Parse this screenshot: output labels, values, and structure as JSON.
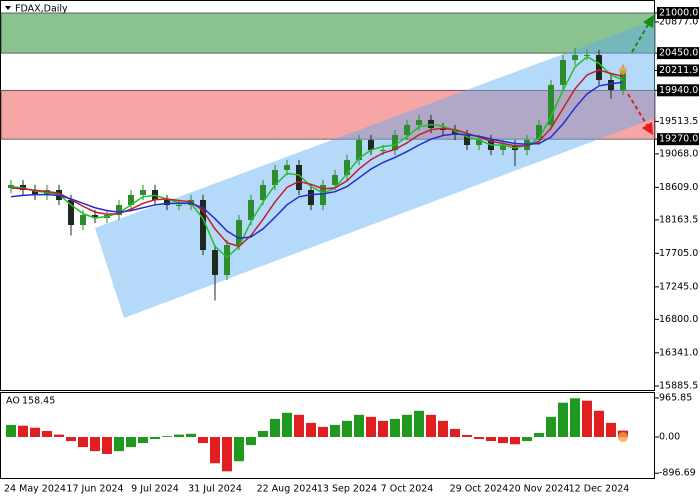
{
  "chart_data": [
    {
      "type": "candlestick",
      "title": "FDAX,Daily",
      "categories": [
        null,
        null,
        "24 May 2024",
        null,
        null,
        null,
        null,
        "17 Jun 2024",
        null,
        null,
        null,
        null,
        "9 Jul 2024",
        null,
        null,
        null,
        null,
        "31 Jul 2024",
        null,
        null,
        null,
        null,
        null,
        "22 Aug 2024",
        null,
        null,
        null,
        null,
        "13 Sep 2024",
        null,
        null,
        null,
        null,
        "7 Oct 2024",
        null,
        null,
        null,
        null,
        null,
        "29 Oct 2024",
        null,
        null,
        null,
        null,
        "20 Nov 2024",
        null,
        null,
        null,
        null,
        "12 Dec 2024",
        null,
        null
      ],
      "open": [
        18600,
        18642,
        18573,
        18505,
        18573,
        18436,
        18093,
        18230,
        18189,
        18230,
        18367,
        18505,
        18573,
        18436,
        18367,
        18367,
        18436,
        17750,
        17408,
        17819,
        18162,
        18436,
        18642,
        18847,
        18916,
        18573,
        18367,
        18642,
        18779,
        18984,
        19259,
        19121,
        19121,
        19327,
        19464,
        19533,
        19423,
        19396,
        19327,
        19190,
        19259,
        19121,
        19190,
        19121,
        19259,
        19464,
        20013,
        20355,
        20424,
        20424,
        20081,
        19944
      ],
      "high": [
        18712,
        18712,
        18643,
        18643,
        18643,
        18506,
        18300,
        18300,
        18300,
        18437,
        18575,
        18643,
        18643,
        18506,
        18437,
        18506,
        18506,
        17820,
        17889,
        18232,
        18506,
        18712,
        18917,
        18986,
        18986,
        18643,
        18712,
        18849,
        19054,
        19329,
        19329,
        19191,
        19397,
        19534,
        19603,
        19603,
        19493,
        19466,
        19397,
        19329,
        19329,
        19260,
        19260,
        19329,
        19534,
        20083,
        20425,
        20524,
        20494,
        20494,
        20151,
        20290
      ],
      "low": [
        18530,
        18503,
        18435,
        18435,
        18366,
        17950,
        18023,
        18119,
        18119,
        18160,
        18297,
        18435,
        18366,
        18297,
        18297,
        18297,
        17680,
        17058,
        17338,
        17749,
        18092,
        18366,
        18572,
        18777,
        18503,
        18297,
        18297,
        18572,
        18709,
        18914,
        19051,
        19051,
        19051,
        19257,
        19394,
        19353,
        19326,
        19257,
        19120,
        19120,
        19051,
        19051,
        18900,
        19051,
        19189,
        19394,
        19943,
        20285,
        20354,
        20011,
        19824,
        19874
      ],
      "close": [
        18642,
        18573,
        18505,
        18573,
        18436,
        18093,
        18230,
        18189,
        18230,
        18367,
        18505,
        18573,
        18436,
        18367,
        18367,
        18436,
        17750,
        17408,
        17819,
        18162,
        18436,
        18642,
        18847,
        18916,
        18573,
        18367,
        18642,
        18779,
        18984,
        19259,
        19121,
        19121,
        19327,
        19464,
        19533,
        19423,
        19396,
        19327,
        19190,
        19259,
        19121,
        19190,
        19121,
        19259,
        19464,
        20013,
        20355,
        20424,
        20424,
        20081,
        19944,
        20211.9
      ],
      "up_color": "#2e8b2e",
      "down_color": "#1e2a1e",
      "series": [
        {
          "color": "#22c02a",
          "values": [
            18620,
            18600,
            18560,
            18540,
            18510,
            18370,
            18250,
            18190,
            18210,
            18260,
            18370,
            18480,
            18500,
            18450,
            18400,
            18390,
            18180,
            17800,
            17650,
            17800,
            18140,
            18410,
            18640,
            18800,
            18780,
            18620,
            18530,
            18600,
            18800,
            19010,
            19120,
            19170,
            19190,
            19300,
            19440,
            19470,
            19450,
            19380,
            19300,
            19260,
            19190,
            19190,
            19150,
            19190,
            19280,
            19580,
            19940,
            20260,
            20400,
            20310,
            20150,
            20080
          ]
        },
        {
          "color": "#c0202a",
          "values": [
            18600,
            18590,
            18570,
            18550,
            18530,
            18440,
            18350,
            18270,
            18240,
            18250,
            18310,
            18390,
            18440,
            18450,
            18430,
            18410,
            18290,
            18040,
            17850,
            17800,
            17950,
            18170,
            18410,
            18610,
            18690,
            18650,
            18590,
            18600,
            18700,
            18860,
            18990,
            19080,
            19130,
            19220,
            19330,
            19400,
            19420,
            19400,
            19350,
            19300,
            19240,
            19210,
            19180,
            19180,
            19240,
            19420,
            19690,
            19960,
            20150,
            20220,
            20170,
            20130
          ]
        },
        {
          "color": "#2a2ad0",
          "values": [
            18480,
            18500,
            18510,
            18510,
            18500,
            18450,
            18390,
            18330,
            18290,
            18270,
            18290,
            18330,
            18370,
            18390,
            18390,
            18390,
            18330,
            18180,
            18010,
            17910,
            17930,
            18040,
            18200,
            18370,
            18480,
            18510,
            18520,
            18550,
            18620,
            18740,
            18860,
            18950,
            19020,
            19100,
            19190,
            19270,
            19320,
            19340,
            19330,
            19310,
            19270,
            19240,
            19210,
            19200,
            19210,
            19300,
            19480,
            19700,
            19890,
            20000,
            20030,
            20050
          ]
        }
      ],
      "zones": [
        {
          "from": 20450,
          "to": 21000,
          "color": "#3c9a46"
        },
        {
          "from": 19270,
          "to": 19940,
          "color": "#f26a6a"
        }
      ],
      "ylim": [
        15831,
        21178
      ],
      "yticks": [
        {
          "value": 21000,
          "label": "21000.0",
          "boxed": true
        },
        {
          "value": 20877,
          "label": "20877.0"
        },
        {
          "value": 20450,
          "label": "20450.0",
          "boxed": true
        },
        {
          "value": 20211.9,
          "label": "20211.9",
          "boxed": true
        },
        {
          "value": 19940,
          "label": "19940.0",
          "boxed": true
        },
        19513.5,
        {
          "value": 19270,
          "label": "19270.0",
          "boxed": true
        },
        {
          "value": 19068,
          "label": "19068.0"
        },
        {
          "value": 18609,
          "label": "18609.0"
        },
        18163.5,
        {
          "value": 17705,
          "label": "17705.0"
        },
        {
          "value": 17245,
          "label": "17245.0"
        },
        {
          "value": 16800,
          "label": "16800.0"
        },
        {
          "value": 16341,
          "label": "16341.0"
        },
        15885.5
      ]
    },
    {
      "type": "bar",
      "title": "AO",
      "values": [
        300,
        280,
        230,
        150,
        60,
        -100,
        -250,
        -350,
        -420,
        -350,
        -250,
        -150,
        -50,
        20,
        60,
        80,
        -150,
        -650,
        -850,
        -600,
        -200,
        150,
        450,
        600,
        550,
        350,
        250,
        300,
        400,
        550,
        500,
        400,
        450,
        550,
        650,
        550,
        400,
        200,
        50,
        -50,
        -100,
        -150,
        -180,
        -100,
        100,
        500,
        850,
        960,
        900,
        650,
        350,
        158.45
      ],
      "up_color": "#1f9a1f",
      "down_color": "#e02020",
      "ylim": [
        -1015,
        1090
      ],
      "yticks": [
        965.85,
        {
          "value": 0,
          "label": "0.00"
        },
        -896.69
      ]
    }
  ]
}
